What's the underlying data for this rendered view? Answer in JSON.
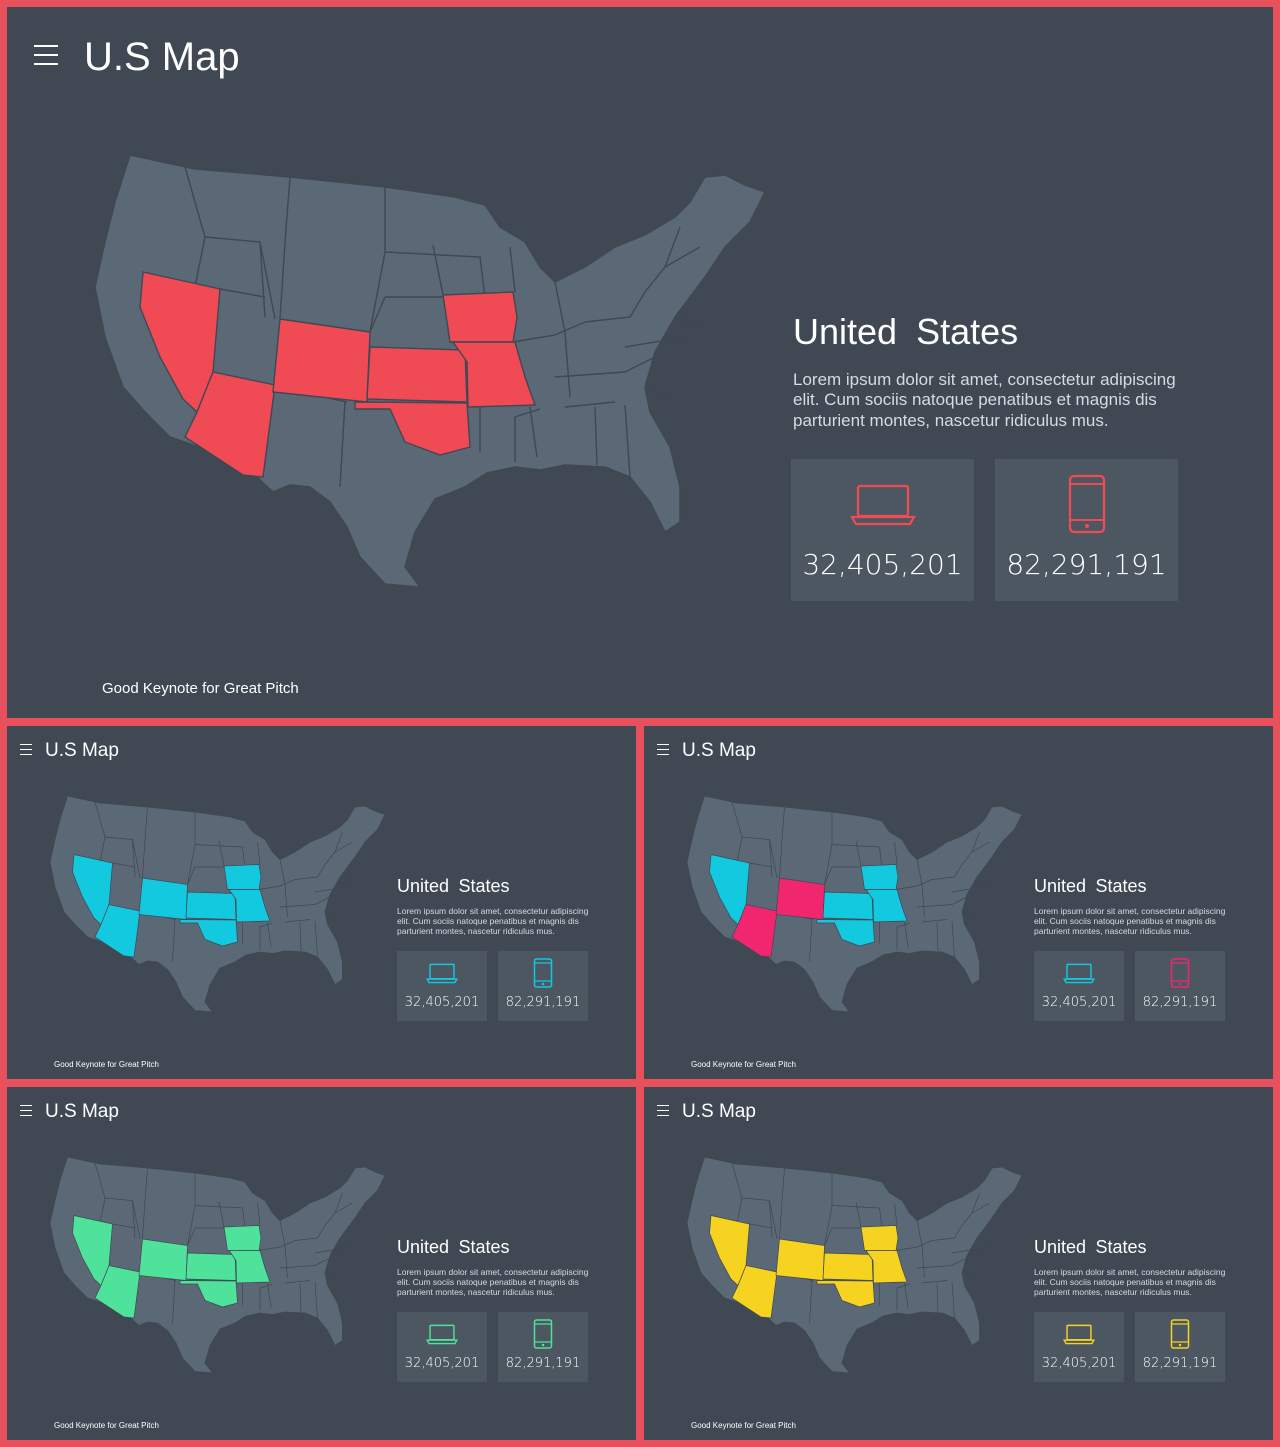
{
  "slides": [
    {
      "title": "U.S Map",
      "info_title": "United  States",
      "info_body": "Lorem ipsum dolor sit amet, consectetur adipiscing elit. Cum sociis natoque penatibus et magnis dis parturient montes, nascetur ridiculus mus.",
      "stats": [
        {
          "icon": "laptop-icon",
          "value": "32,405,201"
        },
        {
          "icon": "smartphone-icon",
          "value": "82,291,191"
        }
      ],
      "footer": "Good Keynote for Great Pitch",
      "accent": "#f04b55",
      "highlighted_states": [
        "Nevada",
        "Arizona",
        "Colorado",
        "Kansas",
        "Oklahoma",
        "Iowa",
        "Missouri"
      ]
    },
    {
      "title": "U.S Map",
      "info_title": "United  States",
      "info_body": "Lorem ipsum dolor sit amet, consectetur adipiscing elit. Cum sociis natoque penatibus et magnis dis parturient montes, nascetur ridiculus mus.",
      "stats": [
        {
          "icon": "laptop-icon",
          "value": "32,405,201"
        },
        {
          "icon": "smartphone-icon",
          "value": "82,291,191"
        }
      ],
      "footer": "Good Keynote for Great Pitch",
      "accent": "#12c9e0",
      "highlighted_states": [
        "Nevada",
        "Arizona",
        "Colorado",
        "Kansas",
        "Oklahoma",
        "Iowa",
        "Missouri"
      ]
    },
    {
      "title": "U.S Map",
      "info_title": "United  States",
      "info_body": "Lorem ipsum dolor sit amet, consectetur adipiscing elit. Cum sociis natoque penatibus et magnis dis parturient montes, nascetur ridiculus mus.",
      "stats": [
        {
          "icon": "laptop-icon",
          "value": "32,405,201"
        },
        {
          "icon": "smartphone-icon",
          "value": "82,291,191"
        }
      ],
      "footer": "Good Keynote for Great Pitch",
      "accent": "#12c9e0",
      "accent_secondary": "#f2266f",
      "highlighted_states": [
        "Nevada",
        "Kansas",
        "Oklahoma",
        "Iowa",
        "Missouri"
      ],
      "secondary_states": [
        "Arizona",
        "Colorado"
      ]
    },
    {
      "title": "U.S Map",
      "info_title": "United  States",
      "info_body": "Lorem ipsum dolor sit amet, consectetur adipiscing elit. Cum sociis natoque penatibus et magnis dis parturient montes, nascetur ridiculus mus.",
      "stats": [
        {
          "icon": "laptop-icon",
          "value": "32,405,201"
        },
        {
          "icon": "smartphone-icon",
          "value": "82,291,191"
        }
      ],
      "footer": "Good Keynote for Great Pitch",
      "accent": "#4fe29a",
      "highlighted_states": [
        "Nevada",
        "Arizona",
        "Colorado",
        "Kansas",
        "Oklahoma",
        "Iowa",
        "Missouri"
      ]
    },
    {
      "title": "U.S Map",
      "info_title": "United  States",
      "info_body": "Lorem ipsum dolor sit amet, consectetur adipiscing elit. Cum sociis natoque penatibus et magnis dis parturient montes, nascetur ridiculus mus.",
      "stats": [
        {
          "icon": "laptop-icon",
          "value": "32,405,201"
        },
        {
          "icon": "smartphone-icon",
          "value": "82,291,191"
        }
      ],
      "footer": "Good Keynote for Great Pitch",
      "accent": "#f5d320",
      "highlighted_states": [
        "Nevada",
        "Arizona",
        "Colorado",
        "Kansas",
        "Oklahoma",
        "Iowa",
        "Missouri"
      ]
    }
  ]
}
